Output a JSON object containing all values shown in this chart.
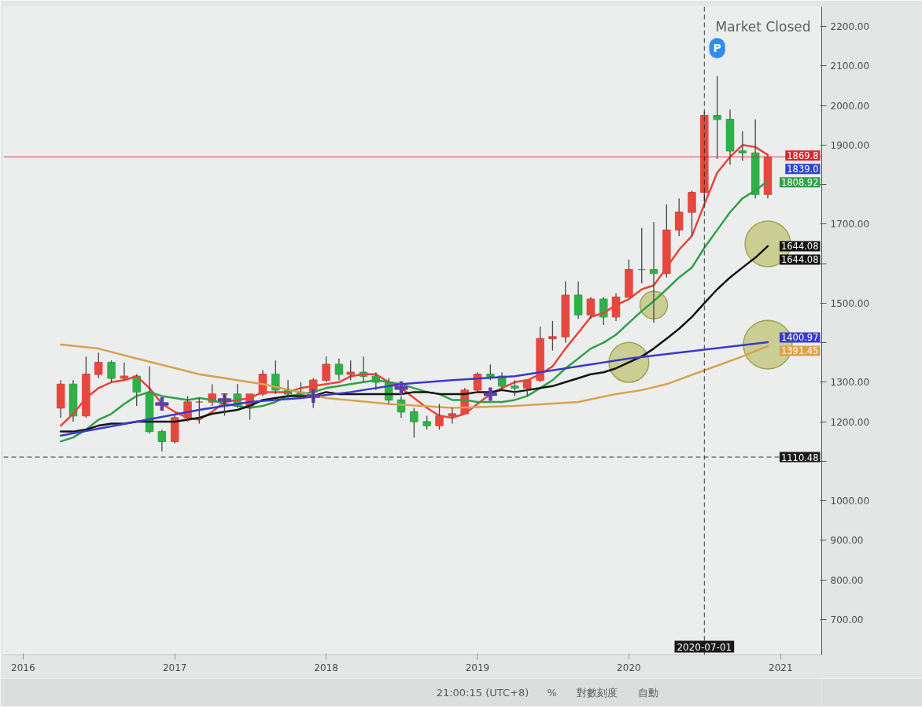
{
  "chart_data": {
    "type": "candlestick",
    "x": [
      "2016-04",
      "2016-05",
      "2016-06",
      "2016-07",
      "2016-08",
      "2016-09",
      "2016-10",
      "2016-11",
      "2016-12",
      "2017-01",
      "2017-02",
      "2017-03",
      "2017-04",
      "2017-05",
      "2017-06",
      "2017-07",
      "2017-08",
      "2017-09",
      "2017-10",
      "2017-11",
      "2017-12",
      "2018-01",
      "2018-02",
      "2018-03",
      "2018-04",
      "2018-05",
      "2018-06",
      "2018-07",
      "2018-08",
      "2018-09",
      "2018-10",
      "2018-11",
      "2018-12",
      "2019-01",
      "2019-02",
      "2019-03",
      "2019-04",
      "2019-05",
      "2019-06",
      "2019-07",
      "2019-08",
      "2019-09",
      "2019-10",
      "2019-11",
      "2019-12",
      "2020-01",
      "2020-02",
      "2020-03",
      "2020-04",
      "2020-05",
      "2020-06",
      "2020-07",
      "2020-08",
      "2020-09",
      "2020-10",
      "2020-11",
      "2020-12"
    ],
    "ohlc": [
      [
        1235,
        1305,
        1210,
        1295
      ],
      [
        1295,
        1305,
        1200,
        1215
      ],
      [
        1215,
        1365,
        1210,
        1320
      ],
      [
        1320,
        1375,
        1310,
        1350
      ],
      [
        1350,
        1355,
        1300,
        1310
      ],
      [
        1310,
        1350,
        1305,
        1315
      ],
      [
        1315,
        1320,
        1240,
        1275
      ],
      [
        1275,
        1340,
        1170,
        1175
      ],
      [
        1175,
        1180,
        1125,
        1150
      ],
      [
        1150,
        1220,
        1145,
        1210
      ],
      [
        1210,
        1265,
        1200,
        1250
      ],
      [
        1250,
        1260,
        1195,
        1250
      ],
      [
        1250,
        1295,
        1240,
        1270
      ],
      [
        1270,
        1270,
        1215,
        1270
      ],
      [
        1270,
        1295,
        1235,
        1240
      ],
      [
        1240,
        1270,
        1205,
        1270
      ],
      [
        1270,
        1330,
        1265,
        1320
      ],
      [
        1320,
        1355,
        1270,
        1280
      ],
      [
        1280,
        1305,
        1260,
        1270
      ],
      [
        1270,
        1300,
        1265,
        1275
      ],
      [
        1275,
        1310,
        1235,
        1305
      ],
      [
        1305,
        1365,
        1300,
        1345
      ],
      [
        1345,
        1360,
        1305,
        1320
      ],
      [
        1320,
        1355,
        1305,
        1325
      ],
      [
        1325,
        1365,
        1300,
        1315
      ],
      [
        1315,
        1325,
        1280,
        1300
      ],
      [
        1300,
        1310,
        1245,
        1255
      ],
      [
        1255,
        1265,
        1210,
        1225
      ],
      [
        1225,
        1235,
        1160,
        1200
      ],
      [
        1200,
        1215,
        1180,
        1190
      ],
      [
        1190,
        1245,
        1180,
        1215
      ],
      [
        1215,
        1235,
        1195,
        1220
      ],
      [
        1220,
        1285,
        1220,
        1280
      ],
      [
        1280,
        1325,
        1275,
        1320
      ],
      [
        1320,
        1345,
        1305,
        1315
      ],
      [
        1315,
        1325,
        1280,
        1290
      ],
      [
        1290,
        1305,
        1265,
        1285
      ],
      [
        1285,
        1305,
        1265,
        1305
      ],
      [
        1305,
        1440,
        1300,
        1410
      ],
      [
        1410,
        1455,
        1380,
        1415
      ],
      [
        1415,
        1555,
        1400,
        1520
      ],
      [
        1520,
        1555,
        1460,
        1470
      ],
      [
        1470,
        1515,
        1460,
        1510
      ],
      [
        1510,
        1515,
        1445,
        1465
      ],
      [
        1465,
        1525,
        1455,
        1515
      ],
      [
        1515,
        1610,
        1515,
        1585
      ],
      [
        1585,
        1690,
        1550,
        1585
      ],
      [
        1585,
        1705,
        1450,
        1575
      ],
      [
        1575,
        1750,
        1565,
        1685
      ],
      [
        1685,
        1765,
        1670,
        1730
      ],
      [
        1730,
        1785,
        1670,
        1780
      ],
      [
        1780,
        1985,
        1755,
        1975
      ],
      [
        1975,
        2075,
        1865,
        1965
      ],
      [
        1965,
        1990,
        1850,
        1885
      ],
      [
        1885,
        1935,
        1860,
        1880
      ],
      [
        1880,
        1965,
        1765,
        1775
      ],
      [
        1775,
        1875,
        1765,
        1870
      ]
    ],
    "colors": [
      "#e5483f",
      "#2fb049",
      "#e5483f",
      "#e5483f",
      "#2fb049",
      "#e5483f",
      "#2fb049",
      "#2fb049",
      "#2fb049",
      "#e5483f",
      "#e5483f",
      "#e5483f",
      "#e5483f",
      "#e5483f",
      "#2fb049",
      "#e5483f",
      "#e5483f",
      "#2fb049",
      "#2fb049",
      "#e5483f",
      "#e5483f",
      "#e5483f",
      "#2fb049",
      "#e5483f",
      "#2fb049",
      "#2fb049",
      "#2fb049",
      "#2fb049",
      "#2fb049",
      "#2fb049",
      "#e5483f",
      "#e5483f",
      "#e5483f",
      "#e5483f",
      "#2fb049",
      "#2fb049",
      "#2fb049",
      "#e5483f",
      "#e5483f",
      "#e5483f",
      "#e5483f",
      "#2fb049",
      "#e5483f",
      "#2fb049",
      "#e5483f",
      "#e5483f",
      "#2fb049",
      "#2fb049",
      "#e5483f",
      "#e5483f",
      "#e5483f",
      "#e5483f",
      "#2fb049",
      "#2fb049",
      "#2fb049",
      "#2fb049",
      "#e5483f"
    ],
    "series": [
      {
        "type": "line",
        "color": "#e5453c",
        "values": [
          1190,
          1220,
          1260,
          1285,
          1300,
          1305,
          1315,
          1285,
          1245,
          1225,
          1210,
          1205,
          1225,
          1250,
          1255,
          1260,
          1275,
          1275,
          1275,
          1285,
          1290,
          1295,
          1300,
          1315,
          1320,
          1320,
          1300,
          1285,
          1260,
          1235,
          1215,
          1210,
          1220,
          1245,
          1270,
          1285,
          1300,
          1305,
          1320,
          1340,
          1385,
          1425,
          1465,
          1475,
          1495,
          1510,
          1535,
          1545,
          1590,
          1635,
          1670,
          1750,
          1830,
          1870,
          1900,
          1895,
          1875
        ]
      },
      {
        "type": "line",
        "color": "#32a046",
        "values": [
          1150,
          1160,
          1180,
          1205,
          1220,
          1245,
          1265,
          1275,
          1265,
          1260,
          1255,
          1260,
          1255,
          1245,
          1240,
          1235,
          1240,
          1250,
          1265,
          1270,
          1275,
          1285,
          1290,
          1295,
          1300,
          1305,
          1300,
          1295,
          1285,
          1275,
          1270,
          1255,
          1255,
          1250,
          1250,
          1250,
          1255,
          1265,
          1285,
          1305,
          1335,
          1360,
          1385,
          1400,
          1420,
          1450,
          1480,
          1505,
          1535,
          1565,
          1590,
          1640,
          1685,
          1730,
          1765,
          1785,
          1808.92
        ],
        "value_labels": [
          null,
          null,
          null,
          null,
          null,
          null,
          null,
          null,
          null,
          null,
          null,
          null,
          null,
          null,
          null,
          null,
          null,
          null,
          null,
          null,
          null,
          null,
          null,
          null,
          null,
          null,
          null,
          null,
          null,
          null,
          null,
          null,
          null,
          null,
          null,
          null,
          null,
          null,
          null,
          null,
          null,
          null,
          null,
          null,
          null,
          null,
          null,
          null,
          null,
          null,
          null,
          null,
          null,
          null,
          null,
          null,
          "1808.92"
        ]
      },
      {
        "type": "line",
        "color": "#141414",
        "values": [
          1175,
          1175,
          1180,
          1190,
          1195,
          1195,
          1200,
          1200,
          1200,
          1200,
          1205,
          1210,
          1220,
          1225,
          1230,
          1240,
          1255,
          1260,
          1265,
          1265,
          1265,
          1275,
          1270,
          1270,
          1270,
          1270,
          1270,
          1270,
          1275,
          1275,
          1270,
          1270,
          1270,
          1275,
          1275,
          1280,
          1275,
          1280,
          1285,
          1290,
          1300,
          1310,
          1320,
          1325,
          1335,
          1350,
          1365,
          1385,
          1410,
          1435,
          1465,
          1500,
          1535,
          1565,
          1590,
          1615,
          1644.08
        ],
        "value_labels": [
          null,
          null,
          null,
          null,
          null,
          null,
          null,
          null,
          null,
          null,
          null,
          null,
          null,
          null,
          null,
          null,
          null,
          null,
          null,
          null,
          null,
          null,
          null,
          null,
          null,
          null,
          null,
          null,
          null,
          null,
          null,
          null,
          null,
          null,
          null,
          null,
          null,
          null,
          null,
          null,
          null,
          null,
          null,
          null,
          null,
          null,
          null,
          null,
          null,
          null,
          null,
          null,
          null,
          null,
          null,
          null,
          "1644.08"
        ]
      },
      {
        "type": "line",
        "color": "#3a3acc",
        "x": [
          "2016-04",
          "2016-10",
          "2017-03",
          "2017-07",
          "2017-11",
          "2018-03",
          "2018-07",
          "2018-11",
          "2019-04",
          "2019-07",
          "2019-10",
          "2020-01",
          "2020-05",
          "2020-12"
        ],
        "values": [
          1165,
          1200,
          1230,
          1250,
          1260,
          1275,
          1295,
          1305,
          1315,
          1330,
          1345,
          1360,
          1375,
          1400.97
        ],
        "value_labels": [
          null,
          null,
          null,
          null,
          null,
          null,
          null,
          null,
          null,
          null,
          null,
          null,
          null,
          "1400.97"
        ]
      },
      {
        "type": "line",
        "color": "#d9a24e",
        "x": [
          "2016-04",
          "2016-07",
          "2016-10",
          "2017-03",
          "2017-08",
          "2018-01",
          "2018-06",
          "2018-11",
          "2019-04",
          "2019-09",
          "2019-12",
          "2020-02",
          "2020-04",
          "2020-07",
          "2020-10",
          "2020-12"
        ],
        "values": [
          1395,
          1385,
          1360,
          1320,
          1295,
          1260,
          1245,
          1235,
          1240,
          1250,
          1270,
          1280,
          1295,
          1330,
          1365,
          1391.45
        ],
        "value_labels": [
          null,
          null,
          null,
          null,
          null,
          null,
          null,
          null,
          null,
          null,
          null,
          null,
          null,
          null,
          null,
          "1391.45"
        ]
      },
      {
        "type": "scatter",
        "marker": "cross",
        "color": "#5d3fa6",
        "x": [
          "2016-12",
          "2017-05",
          "2017-12",
          "2018-07",
          "2019-02"
        ],
        "values": [
          1245,
          1255,
          1265,
          1285,
          1270
        ]
      },
      {
        "type": "bubble",
        "color": "#a9ad37",
        "x": [
          "2020-03",
          "2020-01",
          "2020-12",
          "2020-12"
        ],
        "values": [
          1495,
          1350,
          1650,
          1395
        ],
        "sizes": [
          0.32,
          0.67,
          0.87,
          1
        ]
      }
    ],
    "xlim": [
      "2015-11-15",
      "2021-04-10"
    ],
    "xticks": [
      "2016",
      "2017",
      "2018",
      "2019",
      "2020",
      "2021"
    ],
    "ylim": [
      610,
      2250
    ],
    "yticks": [
      {
        "value": 700,
        "label": "700.00"
      },
      {
        "value": 800,
        "label": "800.00"
      },
      {
        "value": 900,
        "label": "900.00"
      },
      {
        "value": 1000,
        "label": "1000.00"
      },
      {
        "value": 1100,
        "label": null
      },
      {
        "value": 1200,
        "label": "1200.00"
      },
      {
        "value": 1300,
        "label": "1300.00"
      },
      {
        "value": 1400,
        "label": null
      },
      {
        "value": 1500,
        "label": "1500.00"
      },
      {
        "value": 1600,
        "label": null
      },
      {
        "value": 1700,
        "label": "1700.00"
      },
      {
        "value": 1800,
        "label": null
      },
      {
        "value": 1900,
        "label": "1900.00"
      },
      {
        "value": 2000,
        "label": "2000.00"
      },
      {
        "value": 2100,
        "label": "2100.00"
      },
      {
        "value": 2200,
        "label": "2200.00"
      }
    ],
    "ref_lines": [
      {
        "axis": "y",
        "value": 1869.8,
        "label": "1869.8",
        "color": "#d9262a",
        "line_style": "solid"
      },
      {
        "axis": "y",
        "value": 1110.48,
        "label": "1110.48",
        "color": "#1a1a1a",
        "line_style": "dashed"
      },
      {
        "axis": "x",
        "value": "2020-07-01",
        "label": "2020-07-01",
        "color": "#1a1a1a",
        "line_style": "dashed"
      }
    ],
    "annotations": [
      "Market Closed",
      {
        "text": "P",
        "x": "2020-08",
        "y": 2145
      },
      "1839.0",
      {
        "text": "1644.08",
        "x": "2020-12",
        "y": 1644.08
      },
      "21:00:15 (UTC+8)",
      "%",
      "對數刻度",
      "自動"
    ],
    "grid": false
  }
}
